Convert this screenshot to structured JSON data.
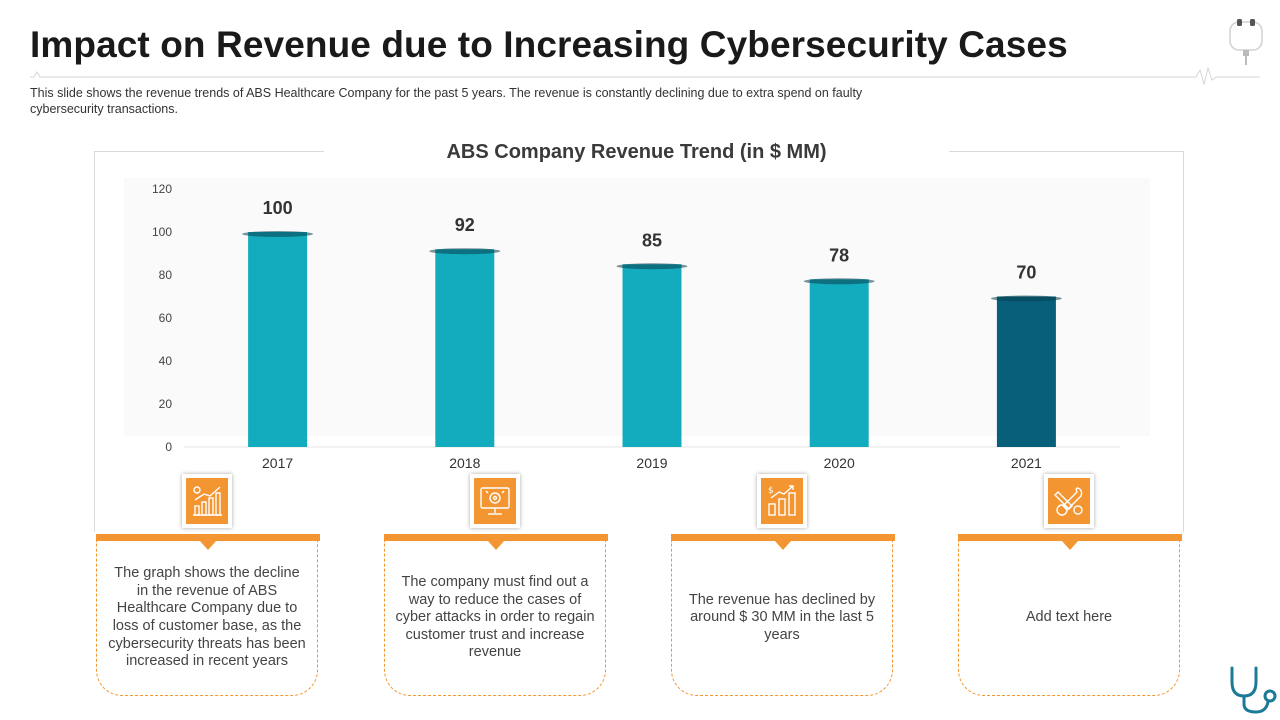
{
  "page": {
    "title": "Impact on Revenue due to Increasing Cybersecurity Cases",
    "subtitle": "This slide shows the revenue  trends of ABS Healthcare Company for the past 5 years. The revenue  is constantly declining due to extra spend on faulty cybersecurity transactions."
  },
  "colors": {
    "accent": "#f39530",
    "bar": "#13acbe",
    "bar_highlight": "#075f7a",
    "title": "#1a1a1a"
  },
  "chart_data": {
    "type": "bar",
    "title": "ABS Company Revenue Trend (in $ MM)",
    "categories": [
      "2017",
      "2018",
      "2019",
      "2020",
      "2021"
    ],
    "values": [
      100,
      92,
      85,
      78,
      70
    ],
    "series": [
      {
        "name": "Revenue",
        "values": [
          100,
          92,
          85,
          78,
          70
        ]
      }
    ],
    "highlight_index": 4,
    "xlabel": "",
    "ylabel": "",
    "ylim": [
      0,
      120
    ],
    "yticks": [
      0,
      20,
      40,
      60,
      80,
      100,
      120
    ],
    "grid": false
  },
  "cards": [
    {
      "icon": "growth-chart-icon",
      "text": "The graph shows the decline in the revenue of ABS Healthcare Company due to loss of customer base, as the cybersecurity threats has been increased in recent years"
    },
    {
      "icon": "computer-security-icon",
      "text": "The company must find out a way to reduce the cases of cyber attacks in order to regain customer trust and increase revenue"
    },
    {
      "icon": "revenue-bar-chart-icon",
      "text": "The revenue has declined by around $ 30 MM in the last 5 years"
    },
    {
      "icon": "tools-icon",
      "text": "Add text here"
    }
  ],
  "decor": {
    "top_right_icon": "plug-icon",
    "bottom_right_icon": "stethoscope-icon"
  }
}
